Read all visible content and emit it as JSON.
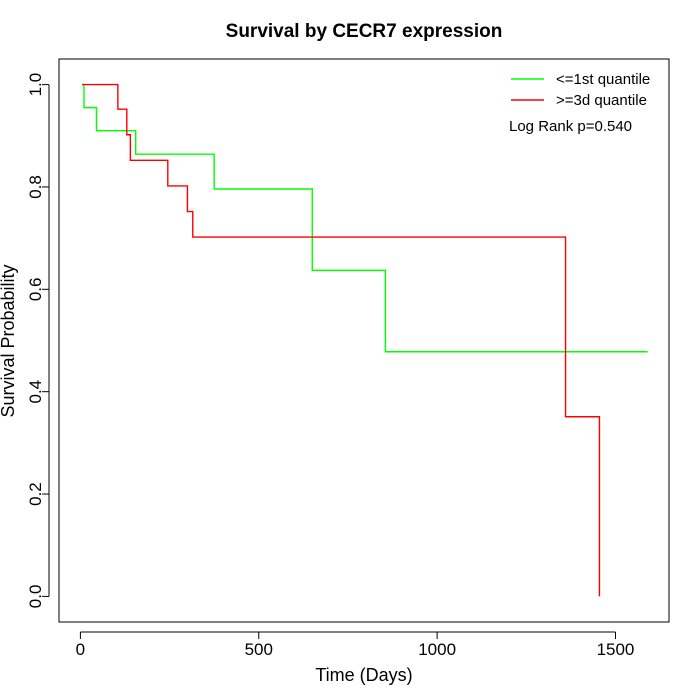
{
  "chart_data": {
    "type": "line",
    "title": "Survival by CECR7 expression",
    "xlabel": "Time (Days)",
    "ylabel": "Survival Probability",
    "xlim": [
      -60,
      1650
    ],
    "ylim": [
      -0.05,
      1.05
    ],
    "x_ticks": [
      0,
      500,
      1000,
      1500
    ],
    "y_ticks": [
      0.0,
      0.2,
      0.4,
      0.6,
      0.8,
      1.0
    ],
    "x_tick_labels": [
      "0",
      "500",
      "1000",
      "1500"
    ],
    "y_tick_labels": [
      "0.0",
      "0.2",
      "0.4",
      "0.6",
      "0.8",
      "1.0"
    ],
    "grid": false,
    "legend_position": "top-right",
    "annotation": "Log Rank p=0.540",
    "series": [
      {
        "name": "<=1st quantile",
        "color": "#00ff00",
        "step": true,
        "points": [
          [
            5,
            1.0
          ],
          [
            10,
            0.955
          ],
          [
            45,
            0.91
          ],
          [
            155,
            0.864
          ],
          [
            375,
            0.796
          ],
          [
            650,
            0.637
          ],
          [
            855,
            0.478
          ],
          [
            1590,
            0.478
          ]
        ]
      },
      {
        "name": ">=3d quantile",
        "color": "#ff0000",
        "step": true,
        "points": [
          [
            5,
            1.0
          ],
          [
            105,
            0.952
          ],
          [
            130,
            0.902
          ],
          [
            140,
            0.852
          ],
          [
            245,
            0.802
          ],
          [
            300,
            0.752
          ],
          [
            315,
            0.702
          ],
          [
            1360,
            0.351
          ],
          [
            1455,
            0.0
          ]
        ]
      }
    ]
  }
}
